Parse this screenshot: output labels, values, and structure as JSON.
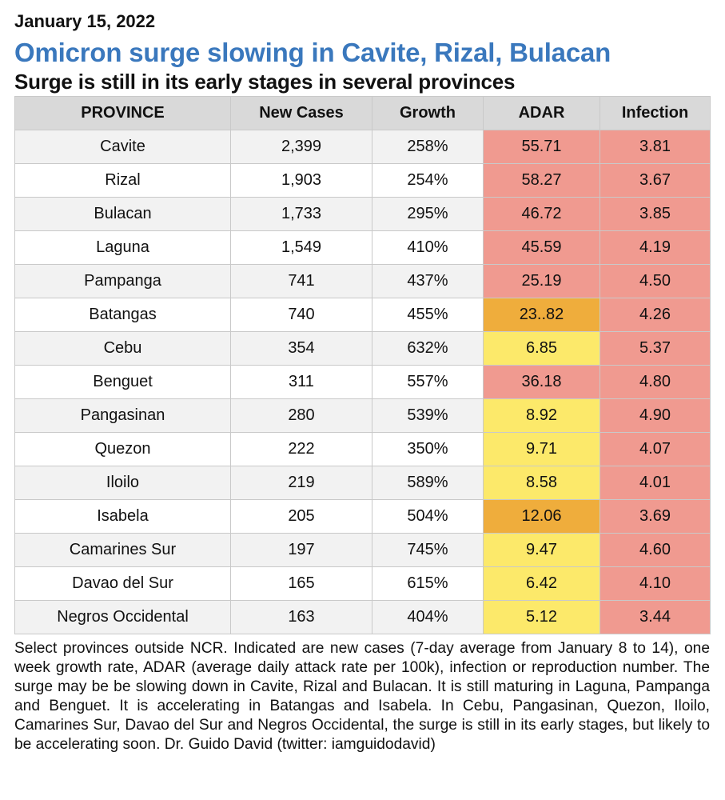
{
  "header": {
    "date": "January 15, 2022",
    "title": "Omicron surge slowing in Cavite, Rizal, Bulacan",
    "subtitle": "Surge is still in its early stages in several provinces"
  },
  "colors": {
    "title_blue": "#3a78bd",
    "header_gray": "#d9d9d9",
    "red": "#f09a90",
    "orange": "#efad3c",
    "yellow": "#fce96a"
  },
  "table": {
    "columns": [
      "PROVINCE",
      "New Cases",
      "Growth",
      "ADAR",
      "Infection"
    ],
    "rows": [
      {
        "province": "Cavite",
        "new_cases": "2,399",
        "growth": "258%",
        "adar": "55.71",
        "adar_level": "red",
        "infection": "3.81",
        "infection_level": "red"
      },
      {
        "province": "Rizal",
        "new_cases": "1,903",
        "growth": "254%",
        "adar": "58.27",
        "adar_level": "red",
        "infection": "3.67",
        "infection_level": "red"
      },
      {
        "province": "Bulacan",
        "new_cases": "1,733",
        "growth": "295%",
        "adar": "46.72",
        "adar_level": "red",
        "infection": "3.85",
        "infection_level": "red"
      },
      {
        "province": "Laguna",
        "new_cases": "1,549",
        "growth": "410%",
        "adar": "45.59",
        "adar_level": "red",
        "infection": "4.19",
        "infection_level": "red"
      },
      {
        "province": "Pampanga",
        "new_cases": "741",
        "growth": "437%",
        "adar": "25.19",
        "adar_level": "red",
        "infection": "4.50",
        "infection_level": "red"
      },
      {
        "province": "Batangas",
        "new_cases": "740",
        "growth": "455%",
        "adar": "23..82",
        "adar_level": "orange",
        "infection": "4.26",
        "infection_level": "red"
      },
      {
        "province": "Cebu",
        "new_cases": "354",
        "growth": "632%",
        "adar": "6.85",
        "adar_level": "yellow",
        "infection": "5.37",
        "infection_level": "red"
      },
      {
        "province": "Benguet",
        "new_cases": "311",
        "growth": "557%",
        "adar": "36.18",
        "adar_level": "red",
        "infection": "4.80",
        "infection_level": "red"
      },
      {
        "province": "Pangasinan",
        "new_cases": "280",
        "growth": "539%",
        "adar": "8.92",
        "adar_level": "yellow",
        "infection": "4.90",
        "infection_level": "red"
      },
      {
        "province": "Quezon",
        "new_cases": "222",
        "growth": "350%",
        "adar": "9.71",
        "adar_level": "yellow",
        "infection": "4.07",
        "infection_level": "red"
      },
      {
        "province": "Iloilo",
        "new_cases": "219",
        "growth": "589%",
        "adar": "8.58",
        "adar_level": "yellow",
        "infection": "4.01",
        "infection_level": "red"
      },
      {
        "province": "Isabela",
        "new_cases": "205",
        "growth": "504%",
        "adar": "12.06",
        "adar_level": "orange",
        "infection": "3.69",
        "infection_level": "red"
      },
      {
        "province": "Camarines Sur",
        "new_cases": "197",
        "growth": "745%",
        "adar": "9.47",
        "adar_level": "yellow",
        "infection": "4.60",
        "infection_level": "red"
      },
      {
        "province": "Davao del Sur",
        "new_cases": "165",
        "growth": "615%",
        "adar": "6.42",
        "adar_level": "yellow",
        "infection": "4.10",
        "infection_level": "red"
      },
      {
        "province": "Negros Occidental",
        "new_cases": "163",
        "growth": "404%",
        "adar": "5.12",
        "adar_level": "yellow",
        "infection": "3.44",
        "infection_level": "red"
      }
    ]
  },
  "footnote": "Select provinces outside NCR. Indicated are new cases (7-day average from January 8 to 14), one week growth rate, ADAR (average daily attack rate per 100k), infection or reproduction number. The surge may be be slowing down in Cavite, Rizal and Bulacan. It is still maturing in Laguna, Pampanga and Benguet. It is accelerating in Batangas and Isabela. In Cebu, Pangasinan, Quezon, Iloilo, Camarines Sur, Davao del Sur and Negros Occidental, the surge is still in its early stages, but likely to be accelerating soon. Dr. Guido David (twitter: iamguidodavid)"
}
